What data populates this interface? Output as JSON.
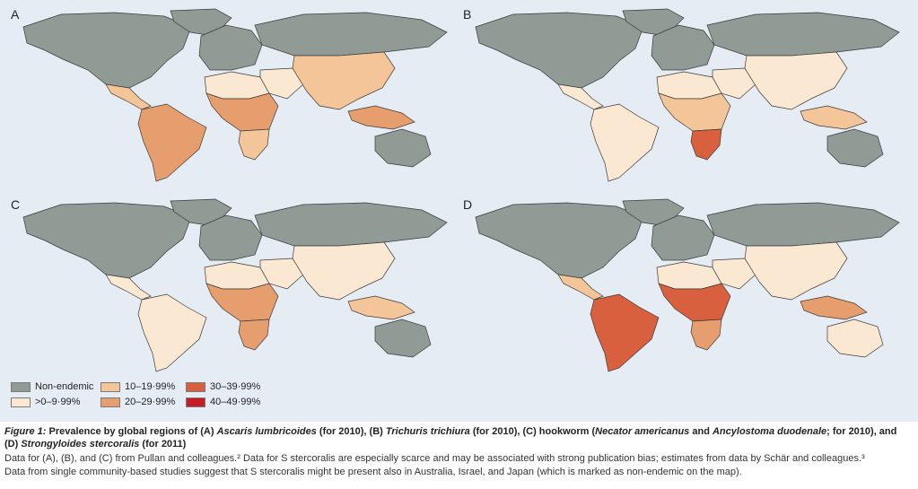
{
  "panels": [
    {
      "letter": "A",
      "fills": {
        "na": "#8f9b94",
        "sa": "#e69e6f",
        "eu": "#8f9b94",
        "afn": "#fbe8d2",
        "afc": "#e69e6f",
        "afs": "#f4c598",
        "me": "#fbe8d2",
        "ru": "#8f9b94",
        "as": "#f4c598",
        "sea": "#e69e6f",
        "au": "#8f9b94",
        "ca": "#f4c598"
      }
    },
    {
      "letter": "B",
      "fills": {
        "na": "#8f9b94",
        "sa": "#fbe8d2",
        "eu": "#8f9b94",
        "afn": "#fbe8d2",
        "afc": "#f4c598",
        "afs": "#d9603e",
        "me": "#fbe8d2",
        "ru": "#8f9b94",
        "as": "#fbe8d2",
        "sea": "#f4c598",
        "au": "#8f9b94",
        "ca": "#fbe8d2"
      }
    },
    {
      "letter": "C",
      "fills": {
        "na": "#8f9b94",
        "sa": "#fbe8d2",
        "eu": "#8f9b94",
        "afn": "#fbe8d2",
        "afc": "#e69e6f",
        "afs": "#e69e6f",
        "me": "#fbe8d2",
        "ru": "#8f9b94",
        "as": "#fbe8d2",
        "sea": "#f4c598",
        "au": "#8f9b94",
        "ca": "#fbe8d2"
      }
    },
    {
      "letter": "D",
      "fills": {
        "na": "#8f9b94",
        "sa": "#d9603e",
        "eu": "#8f9b94",
        "afn": "#fbe8d2",
        "afc": "#d9603e",
        "afs": "#e69e6f",
        "me": "#fbe8d2",
        "ru": "#8f9b94",
        "as": "#fbe8d2",
        "sea": "#e69e6f",
        "au": "#fbe8d2",
        "ca": "#f4c598"
      }
    }
  ],
  "legend": [
    {
      "label": "Non-endemic",
      "color": "#8f9b94"
    },
    {
      "label": ">0–9·99%",
      "color": "#fbe8d2"
    },
    {
      "label": "10–19·99%",
      "color": "#f4c598"
    },
    {
      "label": "20–29·99%",
      "color": "#e69e6f"
    },
    {
      "label": "30–39·99%",
      "color": "#d9603e"
    },
    {
      "label": "40–49·99%",
      "color": "#c41e24"
    }
  ],
  "caption": {
    "fig_label": "Figure 1:",
    "title_a": " Prevalence by global regions of (A) ",
    "ascaris": "Ascaris lumbricoides",
    "title_b": " (for 2010), (B) ",
    "trichuris": "Trichuris trichiura",
    "title_c": " (for 2010), (C) hookworm (",
    "necator": "Necator americanus",
    "title_d": " and ",
    "ancylostoma": "Ancylostoma duodenale",
    "title_e": "; for 2010), and",
    "title_line2_a": "(D) ",
    "strongyloides": "Strongyloides stercoralis",
    "title_line2_b": " (for 2011)",
    "body1": "Data for (A), (B), and (C) from Pullan and colleagues.² Data for S stercoralis are especially scarce and may be associated with strong publication bias; estimates from data by Schär and colleagues.³",
    "body2": "Data from single community-based studies suggest that S stercoralis might be present also in Australia, Israel, and Japan (which is marked as non-endemic on the map)."
  }
}
